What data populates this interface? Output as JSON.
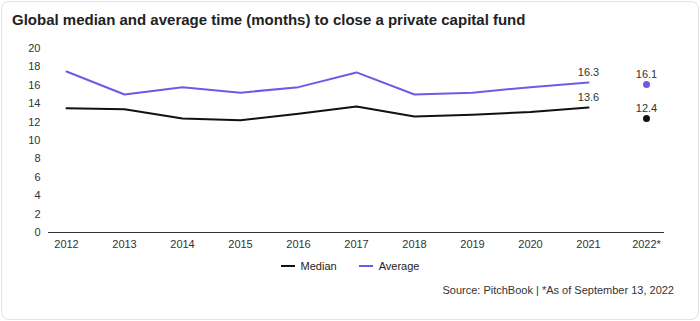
{
  "chart_data": {
    "type": "line",
    "title": "Global median and average time (months) to close a private capital fund",
    "categories": [
      "2012",
      "2013",
      "2014",
      "2015",
      "2016",
      "2017",
      "2018",
      "2019",
      "2020",
      "2021",
      "2022*"
    ],
    "series": [
      {
        "name": "Median",
        "color": "#111111",
        "values": [
          13.5,
          13.4,
          12.4,
          12.2,
          12.9,
          13.7,
          12.6,
          12.8,
          13.1,
          13.6,
          null
        ],
        "value_labels": [
          null,
          null,
          null,
          null,
          null,
          null,
          null,
          null,
          null,
          "13.6",
          null
        ]
      },
      {
        "name": "Average",
        "color": "#6b5ce7",
        "values": [
          17.5,
          15.0,
          15.8,
          15.2,
          15.8,
          17.4,
          15.0,
          15.2,
          15.8,
          16.3,
          null
        ],
        "value_labels": [
          null,
          null,
          null,
          null,
          null,
          null,
          null,
          null,
          null,
          "16.3",
          null
        ]
      },
      {
        "name": "Median",
        "color": "#111111",
        "type": "scatter",
        "values": [
          null,
          null,
          null,
          null,
          null,
          null,
          null,
          null,
          null,
          null,
          12.4
        ],
        "value_labels": [
          null,
          null,
          null,
          null,
          null,
          null,
          null,
          null,
          null,
          null,
          "12.4"
        ]
      },
      {
        "name": "Average",
        "color": "#6b5ce7",
        "type": "scatter",
        "values": [
          null,
          null,
          null,
          null,
          null,
          null,
          null,
          null,
          null,
          null,
          16.1
        ],
        "value_labels": [
          null,
          null,
          null,
          null,
          null,
          null,
          null,
          null,
          null,
          null,
          "16.1"
        ]
      }
    ],
    "ylim": [
      0,
      20
    ],
    "yticks": [
      0,
      2,
      4,
      6,
      8,
      10,
      12,
      14,
      16,
      18,
      20
    ],
    "grid": false,
    "legend": "bottom",
    "data_labels": true,
    "caption": "Source: PitchBook | *As of September 13, 2022"
  }
}
